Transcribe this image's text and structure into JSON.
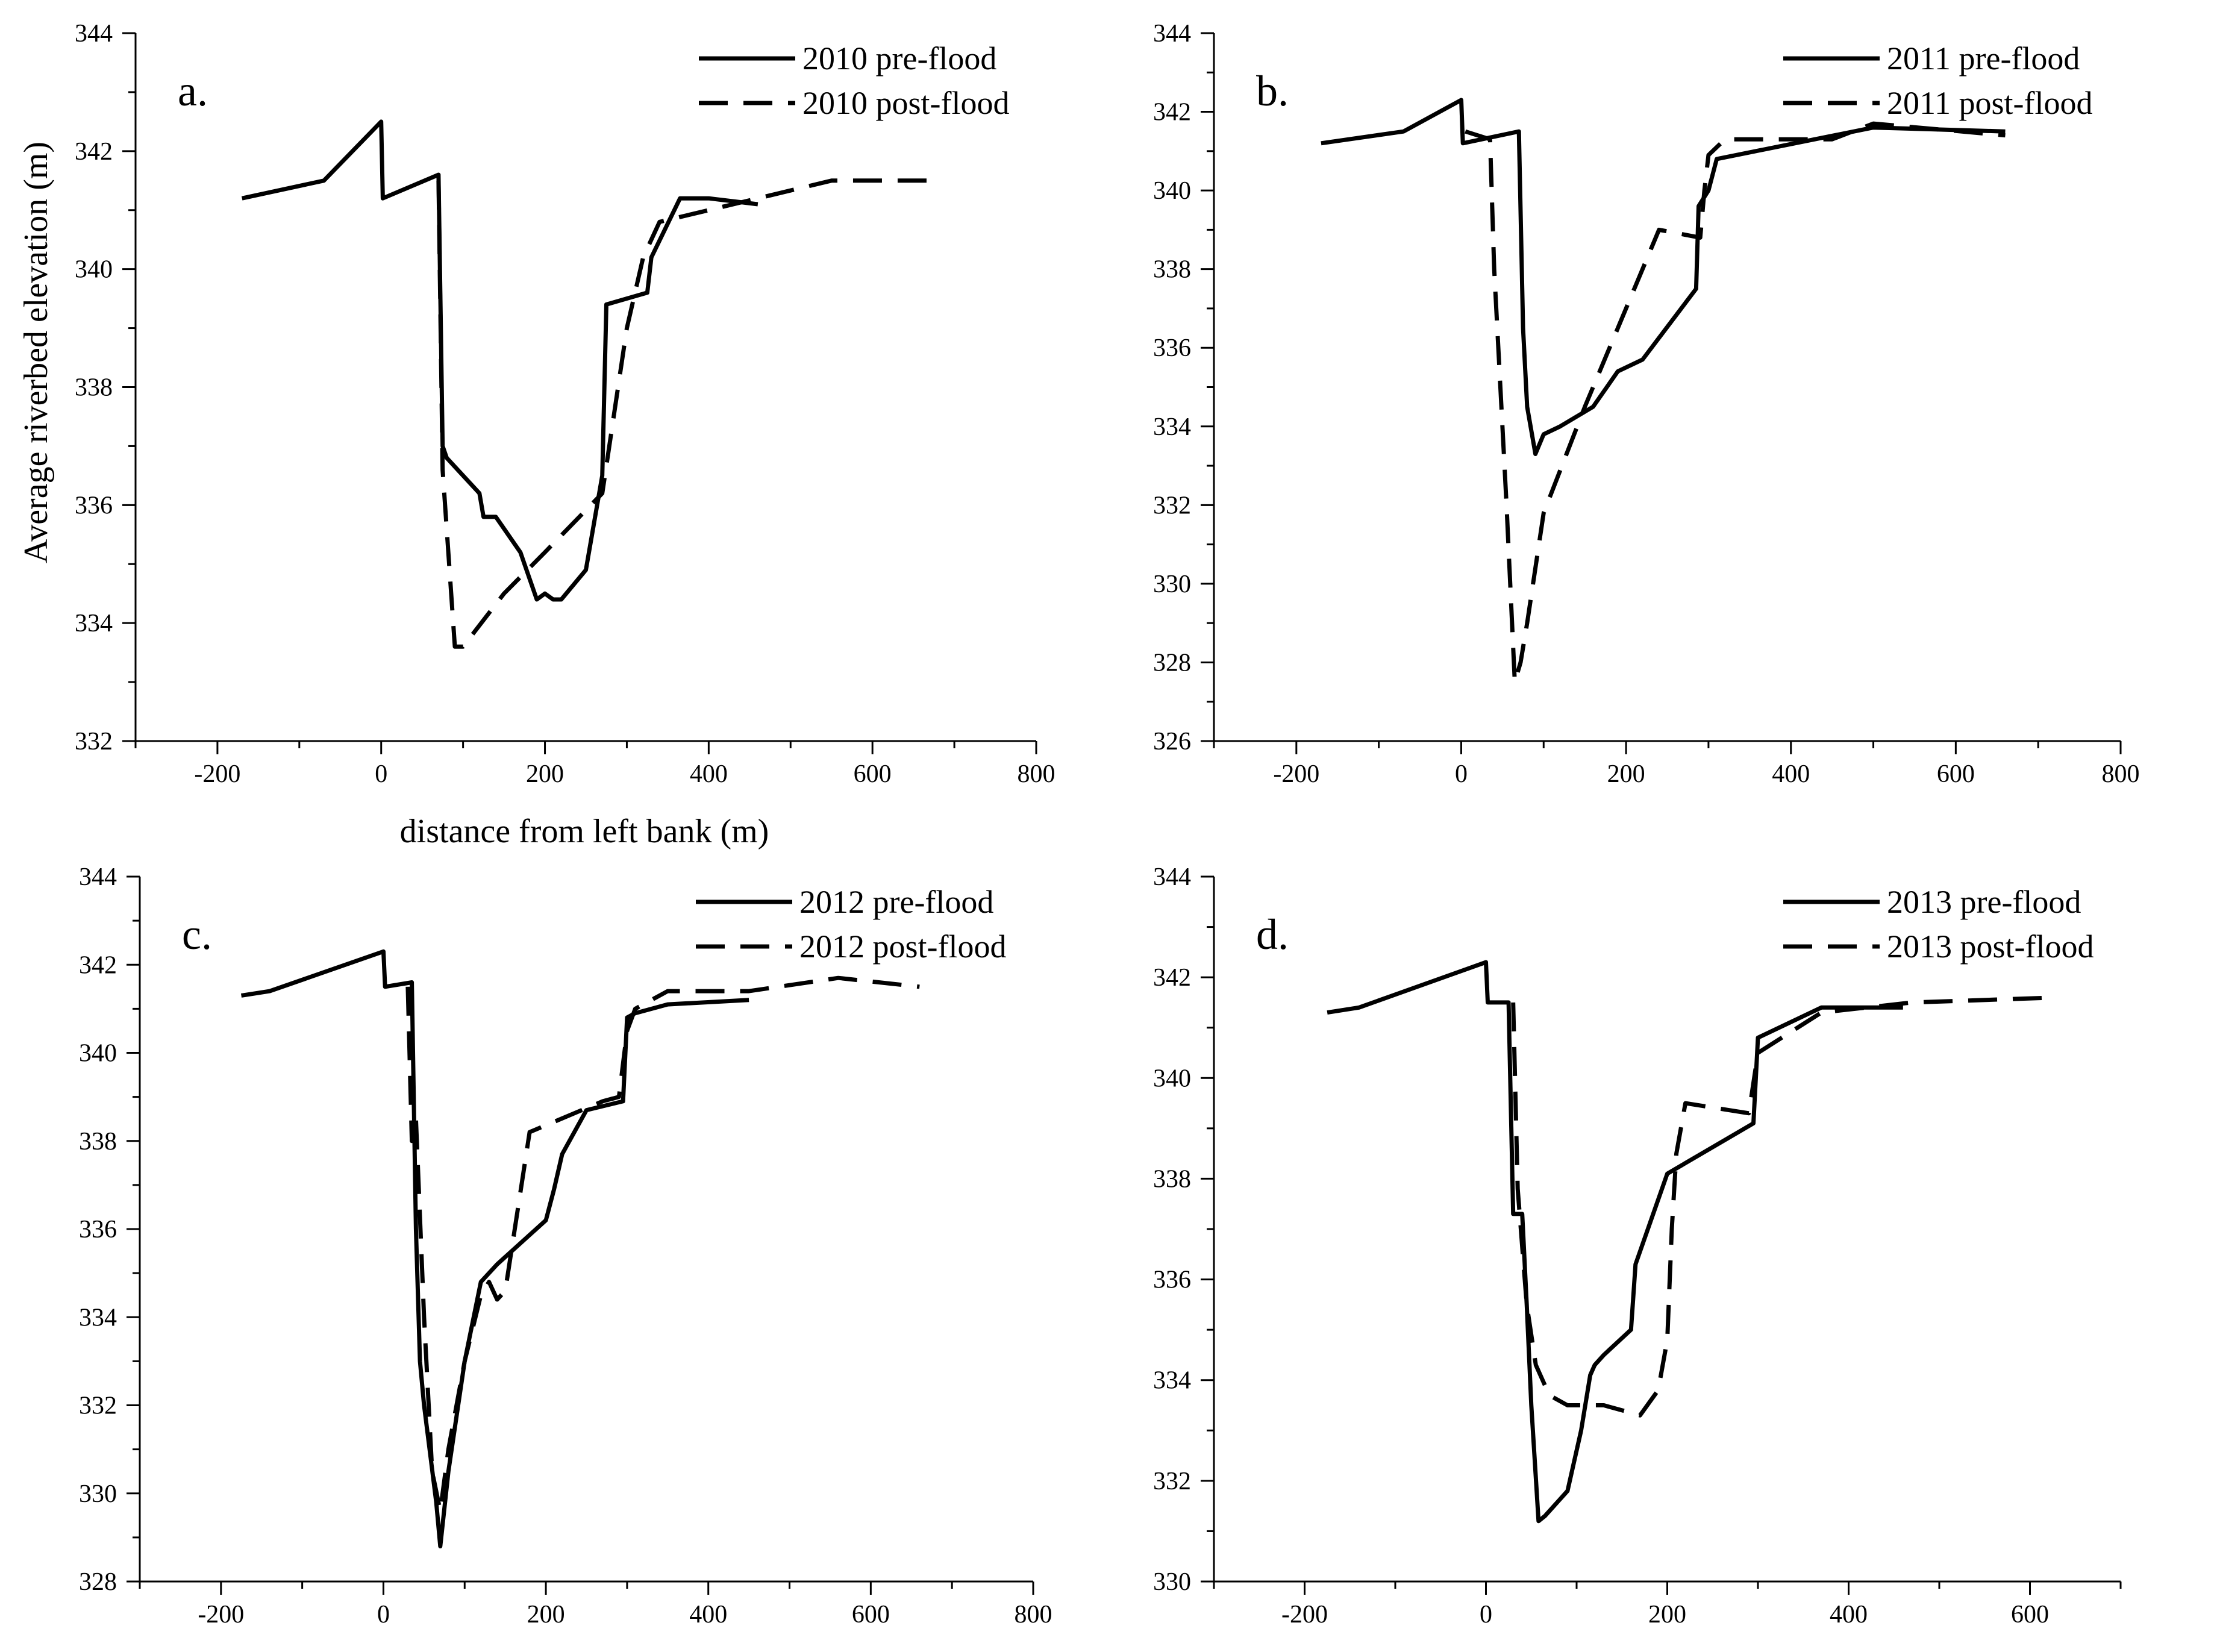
{
  "shared": {
    "y_axis_label": "Average riverbed elevation (m)",
    "x_axis_label": "distance from left bank (m)"
  },
  "chart_data": [
    {
      "type": "line",
      "panel_label": "a.",
      "xlim": [
        -300,
        800
      ],
      "ylim": [
        332,
        344
      ],
      "xticks": [
        -200,
        0,
        200,
        400,
        600,
        800
      ],
      "yticks": [
        332,
        334,
        336,
        338,
        340,
        342,
        344
      ],
      "legend_position": "top-right",
      "series": [
        {
          "name": "2010 pre-flood",
          "style": "solid",
          "x": [
            -170,
            -70,
            0,
            2,
            70,
            75,
            80,
            120,
            125,
            140,
            170,
            190,
            200,
            210,
            220,
            250,
            270,
            275,
            325,
            330,
            365,
            400,
            460
          ],
          "y": [
            341.2,
            341.5,
            342.5,
            341.2,
            341.6,
            337.0,
            336.8,
            336.2,
            335.8,
            335.8,
            335.2,
            334.4,
            334.5,
            334.4,
            334.4,
            334.9,
            336.5,
            339.4,
            339.6,
            340.2,
            341.2,
            341.2,
            341.1
          ]
        },
        {
          "name": "2010 post-flood",
          "style": "dashed",
          "x": [
            70,
            75,
            90,
            100,
            150,
            200,
            270,
            300,
            320,
            340,
            400,
            460,
            550,
            670
          ],
          "y": [
            341.5,
            336.6,
            333.6,
            333.6,
            334.5,
            335.2,
            336.2,
            339.0,
            340.2,
            340.8,
            341.0,
            341.2,
            341.5,
            341.5
          ]
        }
      ]
    },
    {
      "type": "line",
      "panel_label": "b.",
      "xlim": [
        -300,
        800
      ],
      "ylim": [
        326,
        344
      ],
      "xticks": [
        -200,
        0,
        200,
        400,
        600,
        800
      ],
      "yticks": [
        326,
        328,
        330,
        332,
        334,
        336,
        338,
        340,
        342,
        344
      ],
      "legend_position": "top-right",
      "series": [
        {
          "name": "2011 pre-flood",
          "style": "solid",
          "x": [
            -170,
            -70,
            0,
            2,
            70,
            75,
            80,
            90,
            100,
            120,
            160,
            190,
            220,
            285,
            288,
            300,
            310,
            500,
            660
          ],
          "y": [
            341.2,
            341.5,
            342.3,
            341.2,
            341.5,
            336.5,
            334.5,
            333.3,
            333.8,
            334.0,
            334.5,
            335.4,
            335.7,
            337.5,
            339.6,
            340.0,
            340.8,
            341.6,
            341.5
          ]
        },
        {
          "name": "2011 post-flood",
          "style": "dashed",
          "x": [
            5,
            35,
            40,
            55,
            65,
            72,
            80,
            100,
            150,
            240,
            290,
            295,
            300,
            320,
            450,
            500,
            660
          ],
          "y": [
            341.5,
            341.3,
            338.0,
            332.0,
            327.5,
            328.0,
            329.0,
            331.8,
            334.5,
            339.0,
            338.8,
            340.0,
            340.9,
            341.3,
            341.3,
            341.7,
            341.4
          ]
        }
      ]
    },
    {
      "type": "line",
      "panel_label": "c.",
      "xlim": [
        -300,
        800
      ],
      "ylim": [
        328,
        344
      ],
      "xticks": [
        -200,
        0,
        200,
        400,
        600,
        800
      ],
      "yticks": [
        328,
        330,
        332,
        334,
        336,
        338,
        340,
        342,
        344
      ],
      "legend_position": "top-right",
      "series": [
        {
          "name": "2012 pre-flood",
          "style": "solid",
          "x": [
            -175,
            -140,
            0,
            2,
            35,
            40,
            45,
            50,
            65,
            70,
            80,
            100,
            120,
            140,
            200,
            210,
            220,
            250,
            295,
            300,
            310,
            350,
            450
          ],
          "y": [
            341.3,
            341.4,
            342.3,
            341.5,
            341.6,
            336.0,
            333.0,
            332.0,
            329.8,
            328.8,
            330.5,
            333.0,
            334.8,
            335.2,
            336.2,
            336.9,
            337.7,
            338.7,
            338.9,
            340.8,
            340.9,
            341.1,
            341.2
          ]
        },
        {
          "name": "2012 post-flood",
          "style": "dashed",
          "x": [
            30,
            35,
            40,
            50,
            60,
            70,
            80,
            100,
            120,
            130,
            140,
            150,
            160,
            180,
            270,
            290,
            300,
            310,
            350,
            450,
            560,
            660
          ],
          "y": [
            341.5,
            338.0,
            338.5,
            334.0,
            330.5,
            329.6,
            331.0,
            333.0,
            334.5,
            334.8,
            334.4,
            334.6,
            335.8,
            338.2,
            338.9,
            339.0,
            340.5,
            341.0,
            341.4,
            341.4,
            341.7,
            341.5
          ]
        }
      ]
    },
    {
      "type": "line",
      "panel_label": "d.",
      "xlim": [
        -300,
        700
      ],
      "ylim": [
        330,
        344
      ],
      "xticks": [
        -200,
        0,
        200,
        400,
        600
      ],
      "yticks": [
        330,
        332,
        334,
        336,
        338,
        340,
        342,
        344
      ],
      "legend_position": "top-right",
      "series": [
        {
          "name": "2013 pre-flood",
          "style": "solid",
          "x": [
            -175,
            -140,
            0,
            2,
            25,
            30,
            32,
            40,
            45,
            50,
            58,
            65,
            75,
            80,
            90,
            105,
            115,
            120,
            130,
            160,
            165,
            200,
            295,
            300,
            370,
            460
          ],
          "y": [
            341.3,
            341.4,
            342.3,
            341.5,
            341.5,
            337.3,
            337.3,
            337.3,
            335.5,
            333.5,
            331.2,
            331.3,
            331.5,
            331.6,
            331.8,
            333.0,
            334.1,
            334.3,
            334.5,
            335.0,
            336.3,
            338.1,
            339.1,
            340.8,
            341.4,
            341.4
          ]
        },
        {
          "name": "2013 post-flood",
          "style": "dashed",
          "x": [
            30,
            35,
            45,
            55,
            70,
            90,
            130,
            170,
            190,
            200,
            205,
            210,
            220,
            290,
            300,
            370,
            470,
            630
          ],
          "y": [
            341.5,
            337.8,
            335.5,
            334.3,
            333.7,
            333.5,
            333.5,
            333.3,
            333.8,
            334.8,
            337.0,
            338.5,
            339.5,
            339.3,
            340.5,
            341.3,
            341.5,
            341.6
          ]
        }
      ]
    }
  ]
}
